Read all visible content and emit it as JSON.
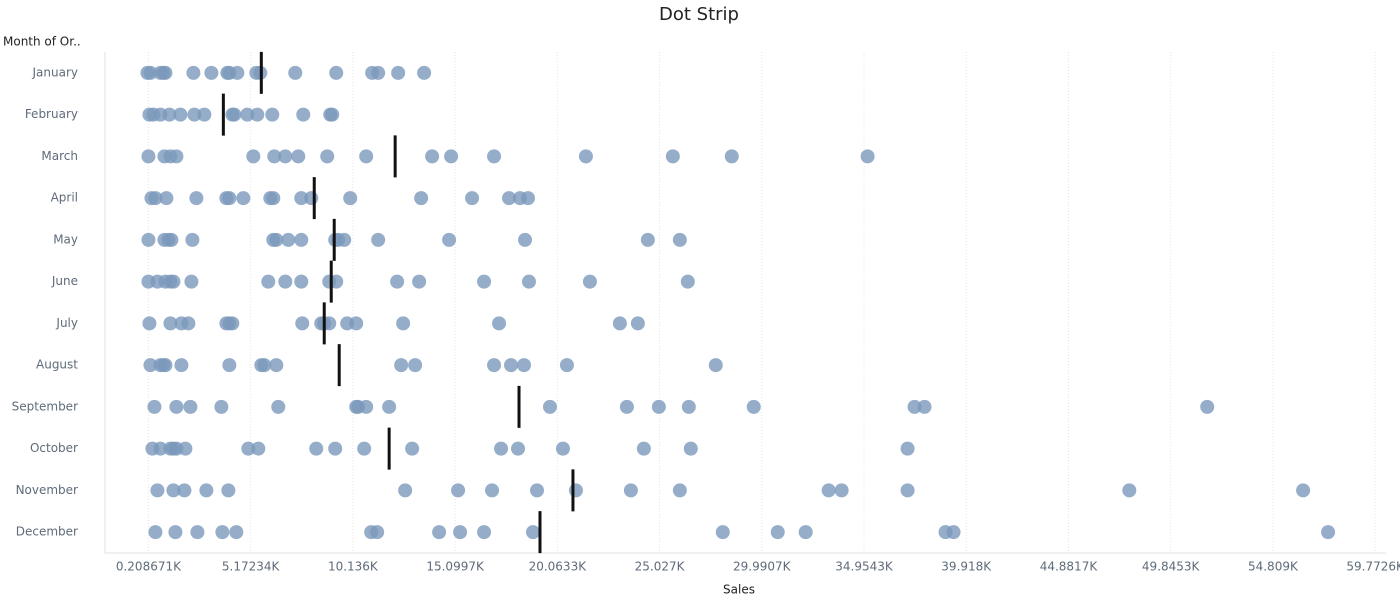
{
  "chart_data": {
    "type": "strip",
    "title": "Dot Strip",
    "y_label": "Month of Or..",
    "x_label": "Sales",
    "color": "#7b98bc",
    "marker_color": "#111111",
    "grid": true,
    "xlim": [
      -1900,
      60300
    ],
    "xticks": [
      {
        "value": 208.671,
        "label": "0.208671K"
      },
      {
        "value": 5172.34,
        "label": "5.17234K"
      },
      {
        "value": 10136,
        "label": "10.136K"
      },
      {
        "value": 15099.7,
        "label": "15.0997K"
      },
      {
        "value": 20063.3,
        "label": "20.0633K"
      },
      {
        "value": 25027,
        "label": "25.027K"
      },
      {
        "value": 29990.7,
        "label": "29.9907K"
      },
      {
        "value": 34954.3,
        "label": "34.9543K"
      },
      {
        "value": 39918,
        "label": "39.918K"
      },
      {
        "value": 44881.7,
        "label": "44.8817K"
      },
      {
        "value": 49845.3,
        "label": "49.8453K"
      },
      {
        "value": 54809,
        "label": "54.809K"
      },
      {
        "value": 59772.6,
        "label": "59.7726K"
      }
    ],
    "categories": [
      "January",
      "February",
      "March",
      "April",
      "May",
      "June",
      "July",
      "August",
      "September",
      "October",
      "November",
      "December"
    ],
    "values": [
      [
        160,
        306,
        791,
        937,
        1034,
        2392,
        3265,
        4041,
        4138,
        4526,
        5447,
        5641,
        7339,
        9327,
        11073,
        11364,
        12334,
        13595
      ],
      [
        257,
        451,
        791,
        1228,
        1761,
        2440,
        2925,
        4283,
        4380,
        5010,
        5496,
        6223,
        7727,
        9036,
        9133
      ],
      [
        209,
        985,
        1276,
        1567,
        5302,
        6320,
        6854,
        7484,
        8891,
        10782,
        13983,
        14905,
        16990,
        21452,
        25672,
        28533,
        35129
      ],
      [
        355,
        549,
        1082,
        2537,
        3992,
        4138,
        4817,
        6126,
        6272,
        7630,
        8115,
        10006,
        13450,
        15923,
        17718,
        18251,
        18639
      ],
      [
        209,
        985,
        1179,
        1325,
        2343,
        6272,
        6417,
        7000,
        7630,
        9278,
        9424,
        9715,
        11364,
        14808,
        18494,
        24459,
        26011
      ],
      [
        209,
        646,
        1034,
        1276,
        1422,
        2295,
        6029,
        6854,
        7630,
        8988,
        9327,
        12286,
        13353,
        16505,
        18687,
        21646,
        26399
      ],
      [
        257,
        1276,
        1810,
        2149,
        3992,
        4138,
        4283,
        7678,
        8600,
        8745,
        8988,
        9860,
        10297,
        12577,
        17233,
        23101,
        23974
      ],
      [
        306,
        791,
        937,
        1034,
        1810,
        4138,
        5690,
        5835,
        6417,
        12480,
        13159,
        16990,
        17815,
        18445,
        20530,
        27757
      ],
      [
        500,
        1567,
        2246,
        3750,
        6514,
        10297,
        10394,
        10782,
        11897,
        19706,
        23441,
        24993,
        26448,
        29600,
        37408,
        37893,
        51619
      ],
      [
        403,
        791,
        1276,
        1422,
        1567,
        2004,
        5059,
        5544,
        8357,
        9278,
        10685,
        13013,
        17330,
        18154,
        20337,
        24265,
        26545,
        37069
      ],
      [
        646,
        1422,
        1955,
        3022,
        4089,
        12674,
        15244,
        16893,
        19076,
        20967,
        23635,
        26011,
        33238,
        33868,
        37069,
        47836,
        56275
      ],
      [
        549,
        1519,
        2586,
        3798,
        4477,
        11024,
        11315,
        14323,
        15341,
        16505,
        18882,
        28097,
        30765,
        32123,
        38913,
        39301,
        57488
      ]
    ],
    "marker_values": [
      5690,
      3847,
      12189,
      8260,
      9230,
      9085,
      8745,
      9472,
      18203,
      11897,
      20822,
      19221
    ]
  }
}
